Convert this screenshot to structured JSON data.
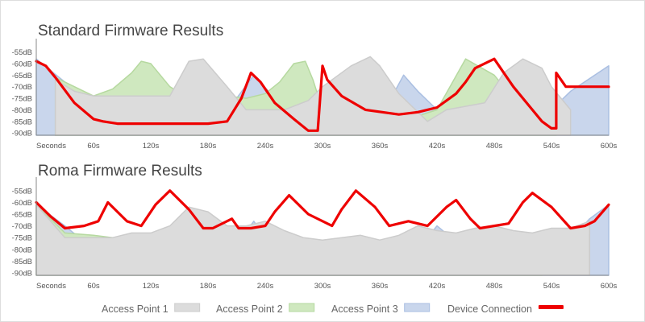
{
  "colors": {
    "access_point_1": "#dcdcdc",
    "access_point_2": "#cfe8bf",
    "access_point_3": "#c9d6ec",
    "access_point_1_stroke": "#cccccc",
    "access_point_2_stroke": "#b6d9a0",
    "access_point_3_stroke": "#aabfe2",
    "device_connection": "#ee0000",
    "axis": "#888888"
  },
  "legend": {
    "items": [
      {
        "label": "Access Point 1",
        "series": "access_point_1"
      },
      {
        "label": "Access Point 2",
        "series": "access_point_2"
      },
      {
        "label": "Access Point 3",
        "series": "access_point_3"
      },
      {
        "label": "Device Connection",
        "series": "device_connection"
      }
    ]
  },
  "chart_data": [
    {
      "type": "area",
      "title": "Standard Firmware Results",
      "xlabel": "",
      "ylabel": "",
      "x_ticks": [
        "Seconds",
        "60s",
        "120s",
        "180s",
        "240s",
        "300s",
        "360s",
        "420s",
        "480s",
        "540s",
        "600s"
      ],
      "y_ticks": [
        "-55dB",
        "-60dB",
        "-65dB",
        "-70dB",
        "-75dB",
        "-80dB",
        "-85dB",
        "-90dB"
      ],
      "xlim": [
        0,
        600
      ],
      "ylim": [
        -91,
        -52
      ],
      "grid": false,
      "series": [
        {
          "name": "Access Point 3",
          "key": "access_point_3",
          "kind": "area",
          "x": [
            0,
            30,
            60,
            80,
            100,
            150,
            190,
            210,
            228,
            250,
            275,
            300,
            340,
            360,
            385,
            400,
            420,
            450,
            500,
            540,
            560,
            600
          ],
          "y": [
            -58,
            -68,
            -80,
            -85,
            -86,
            -86,
            -86,
            -75,
            -65,
            -75,
            -84,
            -86,
            -86,
            -84,
            -65,
            -72,
            -80,
            -85,
            -85,
            -80,
            -72,
            -61
          ]
        },
        {
          "name": "Access Point 2",
          "key": "access_point_2",
          "kind": "area",
          "x": [
            20,
            40,
            60,
            80,
            100,
            110,
            120,
            140,
            160,
            180,
            200,
            220,
            240,
            255,
            270,
            282,
            290,
            300,
            330,
            360,
            390,
            420,
            450,
            480,
            510,
            528,
            545
          ],
          "y": [
            -66,
            -70,
            -74,
            -71,
            -64,
            -59,
            -60,
            -70,
            -75,
            -75,
            -74,
            -75,
            -73,
            -68,
            -60,
            -59,
            -67,
            -80,
            -86,
            -86,
            -84,
            -80,
            -58,
            -65,
            -80,
            -87,
            -89
          ]
        },
        {
          "name": "Access Point 1",
          "key": "access_point_1",
          "kind": "area",
          "x": [
            20,
            40,
            60,
            80,
            110,
            140,
            160,
            175,
            200,
            220,
            240,
            260,
            285,
            300,
            330,
            350,
            360,
            380,
            410,
            430,
            470,
            490,
            510,
            530,
            540,
            560
          ],
          "y": [
            -67,
            -72,
            -74,
            -74,
            -74,
            -74,
            -59,
            -58,
            -70,
            -80,
            -80,
            -80,
            -76,
            -70,
            -61,
            -57,
            -61,
            -73,
            -85,
            -80,
            -77,
            -64,
            -58,
            -62,
            -70,
            -80
          ]
        },
        {
          "name": "Device Connection",
          "key": "device_connection",
          "kind": "line",
          "x": [
            0,
            10,
            20,
            40,
            60,
            70,
            85,
            100,
            120,
            150,
            180,
            200,
            215,
            225,
            235,
            250,
            270,
            285,
            295,
            300,
            305,
            320,
            345,
            380,
            400,
            420,
            430,
            440,
            450,
            460,
            480,
            500,
            520,
            530,
            540,
            545,
            545,
            555,
            570,
            600
          ],
          "y": [
            -59,
            -61,
            -66,
            -77,
            -84,
            -85,
            -86,
            -86,
            -86,
            -86,
            -86,
            -85,
            -75,
            -64,
            -68,
            -77,
            -84,
            -89,
            -89,
            -61,
            -67,
            -74,
            -80,
            -82,
            -81,
            -79,
            -76,
            -73,
            -68,
            -62,
            -58,
            -70,
            -80,
            -85,
            -88,
            -88,
            -64,
            -70,
            -70,
            -70
          ]
        }
      ]
    },
    {
      "type": "area",
      "title": "Roma Firmware Results",
      "xlabel": "",
      "ylabel": "",
      "x_ticks": [
        "Seconds",
        "60s",
        "120s",
        "180s",
        "240s",
        "300s",
        "360s",
        "420s",
        "480s",
        "540s",
        "600s"
      ],
      "y_ticks": [
        "-55dB",
        "-60dB",
        "-65dB",
        "-70dB",
        "-75dB",
        "-80dB",
        "-85dB",
        "-90dB"
      ],
      "xlim": [
        0,
        600
      ],
      "ylim": [
        -91,
        -52
      ],
      "grid": false,
      "series": [
        {
          "name": "Access Point 3",
          "key": "access_point_3",
          "kind": "area",
          "x": [
            0,
            30,
            60,
            80,
            100,
            150,
            190,
            210,
            228,
            240,
            270,
            300,
            330,
            360,
            390,
            420,
            450,
            480,
            500,
            540,
            580,
            600
          ],
          "y": [
            -61,
            -70,
            -80,
            -85,
            -85,
            -85,
            -85,
            -78,
            -68,
            -75,
            -85,
            -89,
            -89,
            -88,
            -85,
            -70,
            -80,
            -85,
            -85,
            -85,
            -67,
            -61
          ]
        },
        {
          "name": "Access Point 2",
          "key": "access_point_2",
          "kind": "area",
          "x": [
            0,
            30,
            60,
            80,
            120,
            150,
            180,
            200,
            220,
            240,
            260,
            300,
            330,
            360,
            380,
            420,
            450,
            480,
            510,
            530
          ],
          "y": [
            -61,
            -73,
            -74,
            -75,
            -74,
            -74,
            -74,
            -75,
            -73,
            -74,
            -78,
            -80,
            -82,
            -83,
            -84,
            -80,
            -76,
            -75,
            -80,
            -84
          ]
        },
        {
          "name": "Access Point 1",
          "key": "access_point_1",
          "kind": "area",
          "x": [
            0,
            30,
            60,
            80,
            100,
            120,
            140,
            160,
            180,
            200,
            220,
            240,
            260,
            280,
            300,
            320,
            340,
            360,
            380,
            400,
            420,
            440,
            460,
            480,
            500,
            520,
            540,
            560,
            580
          ],
          "y": [
            -61,
            -75,
            -75,
            -75,
            -73,
            -73,
            -70,
            -62,
            -64,
            -70,
            -70,
            -68,
            -72,
            -75,
            -76,
            -75,
            -74,
            -76,
            -74,
            -70,
            -72,
            -73,
            -71,
            -70,
            -72,
            -73,
            -71,
            -71,
            -68
          ]
        },
        {
          "name": "Device Connection",
          "key": "device_connection",
          "kind": "line",
          "x": [
            0,
            15,
            30,
            50,
            65,
            75,
            95,
            110,
            125,
            140,
            160,
            175,
            185,
            205,
            212,
            225,
            240,
            250,
            265,
            285,
            310,
            320,
            335,
            355,
            370,
            390,
            410,
            430,
            440,
            455,
            465,
            495,
            510,
            520,
            540,
            560,
            575,
            585,
            600
          ],
          "y": [
            -60,
            -66,
            -71,
            -70,
            -68,
            -60,
            -68,
            -70,
            -61,
            -55,
            -63,
            -71,
            -71,
            -67,
            -71,
            -71,
            -70,
            -64,
            -57,
            -65,
            -70,
            -63,
            -55,
            -62,
            -70,
            -68,
            -70,
            -62,
            -59,
            -67,
            -71,
            -69,
            -60,
            -56,
            -62,
            -71,
            -70,
            -68,
            -61
          ]
        }
      ]
    }
  ]
}
